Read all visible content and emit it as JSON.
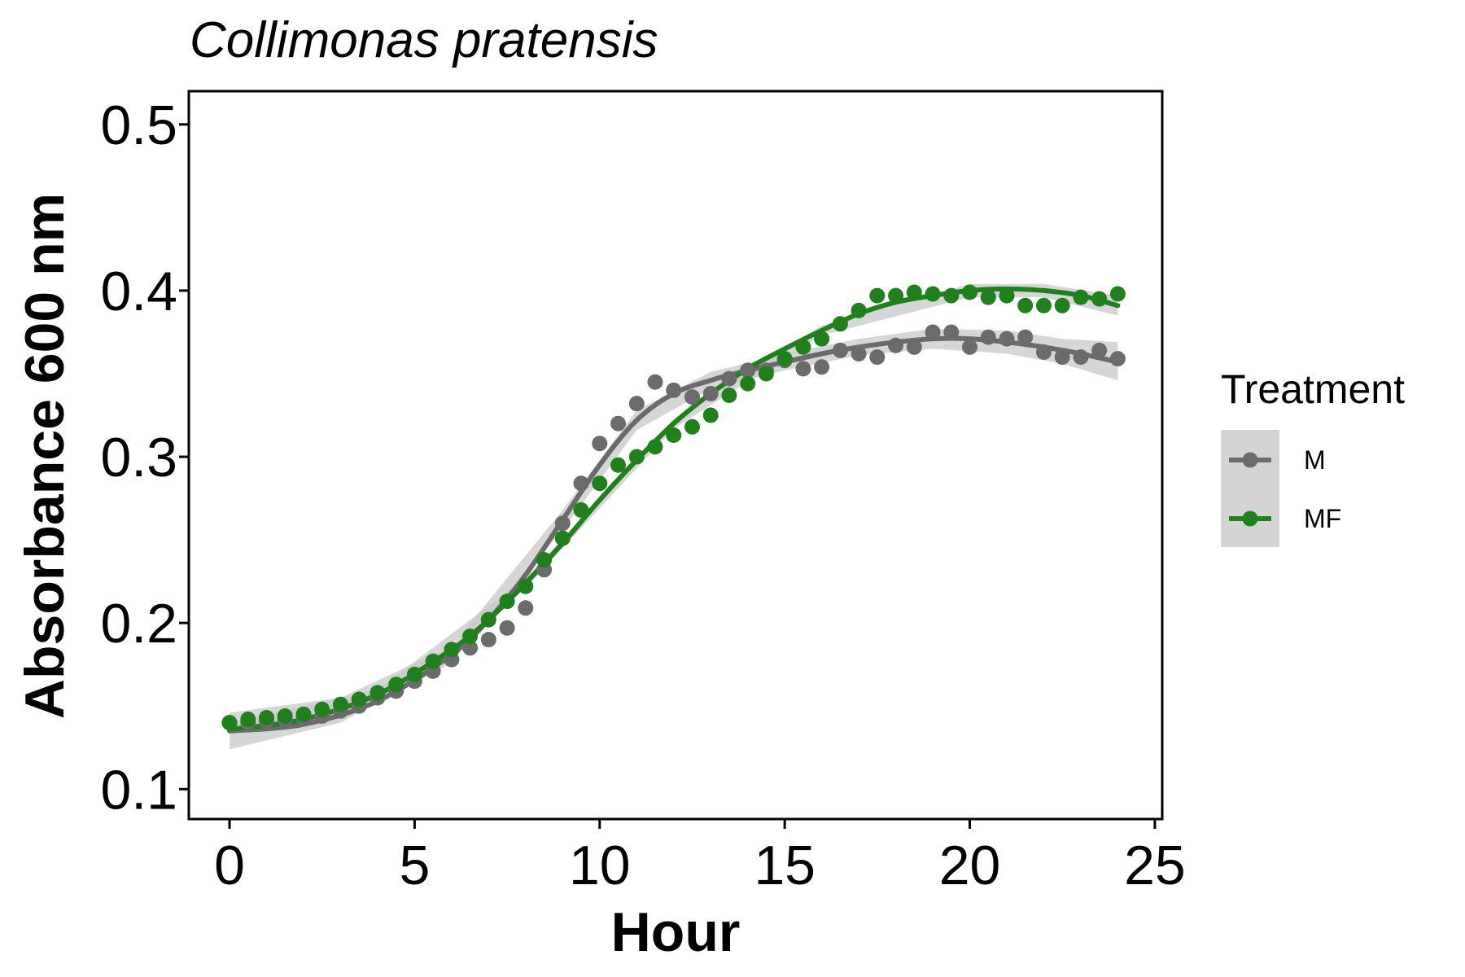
{
  "chart_data": {
    "type": "scatter",
    "title": "Collimonas pratensis",
    "xlabel": "Hour",
    "ylabel": "Absorbance 600 nm",
    "xlim": [
      -1.1,
      25.2
    ],
    "ylim": [
      0.082,
      0.52
    ],
    "x_ticks": [
      0,
      5,
      10,
      15,
      20,
      25
    ],
    "y_ticks": [
      0.1,
      0.2,
      0.3,
      0.4,
      0.5
    ],
    "x_tick_labels": [
      "0",
      "5",
      "10",
      "15",
      "20",
      "25"
    ],
    "y_tick_labels": [
      "0.1",
      "0.2",
      "0.3",
      "0.4",
      "0.5"
    ],
    "grid": false,
    "legend": {
      "title": "Treatment",
      "placement": "right"
    },
    "series": [
      {
        "name": "M",
        "color": "#6b6b6b",
        "x": [
          0,
          0.5,
          1,
          1.5,
          2,
          2.5,
          3,
          3.5,
          4,
          4.5,
          5,
          5.5,
          6,
          6.5,
          7,
          7.5,
          8,
          8.5,
          9,
          9.5,
          10,
          10.5,
          11,
          11.5,
          12,
          12.5,
          13,
          13.5,
          14,
          14.5,
          15,
          15.5,
          16,
          16.5,
          17,
          17.5,
          18,
          18.5,
          19,
          19.5,
          20,
          20.5,
          21,
          21.5,
          22,
          22.5,
          23,
          23.5,
          24
        ],
        "y": [
          0.14,
          0.14,
          0.141,
          0.142,
          0.143,
          0.144,
          0.147,
          0.15,
          0.155,
          0.159,
          0.165,
          0.171,
          0.178,
          0.185,
          0.19,
          0.197,
          0.209,
          0.232,
          0.26,
          0.284,
          0.308,
          0.32,
          0.332,
          0.345,
          0.34,
          0.336,
          0.338,
          0.347,
          0.352,
          0.352,
          0.358,
          0.353,
          0.354,
          0.364,
          0.362,
          0.36,
          0.367,
          0.366,
          0.375,
          0.375,
          0.366,
          0.372,
          0.371,
          0.372,
          0.363,
          0.36,
          0.36,
          0.364,
          0.359
        ],
        "fit": [
          [
            0,
            0.135
          ],
          [
            2,
            0.139
          ],
          [
            4,
            0.153
          ],
          [
            6,
            0.181
          ],
          [
            7,
            0.202
          ],
          [
            8,
            0.229
          ],
          [
            9,
            0.262
          ],
          [
            10,
            0.295
          ],
          [
            11,
            0.322
          ],
          [
            12,
            0.338
          ],
          [
            13,
            0.346
          ],
          [
            14,
            0.352
          ],
          [
            15,
            0.357
          ],
          [
            16,
            0.362
          ],
          [
            17,
            0.366
          ],
          [
            18,
            0.369
          ],
          [
            19,
            0.371
          ],
          [
            20,
            0.371
          ],
          [
            21,
            0.369
          ],
          [
            22,
            0.366
          ],
          [
            23,
            0.362
          ],
          [
            24,
            0.357
          ]
        ],
        "band": [
          [
            0,
            0.124,
            0.146
          ],
          [
            3,
            0.14,
            0.155
          ],
          [
            6,
            0.176,
            0.186
          ],
          [
            9,
            0.256,
            0.268
          ],
          [
            11,
            0.316,
            0.328
          ],
          [
            13,
            0.341,
            0.351
          ],
          [
            15,
            0.352,
            0.362
          ],
          [
            17,
            0.361,
            0.371
          ],
          [
            19,
            0.365,
            0.377
          ],
          [
            21,
            0.362,
            0.376
          ],
          [
            22.5,
            0.356,
            0.371
          ],
          [
            24,
            0.346,
            0.369
          ]
        ]
      },
      {
        "name": "MF",
        "color": "#217f1e",
        "x": [
          0,
          0.5,
          1,
          1.5,
          2,
          2.5,
          3,
          3.5,
          4,
          4.5,
          5,
          5.5,
          6,
          6.5,
          7,
          7.5,
          8,
          8.5,
          9,
          9.5,
          10,
          10.5,
          11,
          11.5,
          12,
          12.5,
          13,
          13.5,
          14,
          14.5,
          15,
          15.5,
          16,
          16.5,
          17,
          17.5,
          18,
          18.5,
          19,
          19.5,
          20,
          20.5,
          21,
          21.5,
          22,
          22.5,
          23,
          23.5,
          24
        ],
        "y": [
          0.14,
          0.142,
          0.143,
          0.144,
          0.145,
          0.148,
          0.151,
          0.154,
          0.158,
          0.163,
          0.169,
          0.177,
          0.184,
          0.192,
          0.202,
          0.213,
          0.222,
          0.238,
          0.251,
          0.268,
          0.284,
          0.295,
          0.3,
          0.306,
          0.313,
          0.318,
          0.325,
          0.337,
          0.344,
          0.35,
          0.359,
          0.366,
          0.371,
          0.38,
          0.388,
          0.397,
          0.397,
          0.399,
          0.398,
          0.397,
          0.399,
          0.396,
          0.397,
          0.391,
          0.391,
          0.391,
          0.396,
          0.395,
          0.398
        ],
        "fit": [
          [
            0,
            0.136
          ],
          [
            2,
            0.142
          ],
          [
            4,
            0.157
          ],
          [
            6,
            0.184
          ],
          [
            7,
            0.202
          ],
          [
            8,
            0.224
          ],
          [
            9,
            0.248
          ],
          [
            10,
            0.274
          ],
          [
            11,
            0.298
          ],
          [
            12,
            0.32
          ],
          [
            13,
            0.338
          ],
          [
            14,
            0.353
          ],
          [
            15,
            0.365
          ],
          [
            16,
            0.376
          ],
          [
            17,
            0.386
          ],
          [
            18,
            0.393
          ],
          [
            19,
            0.397
          ],
          [
            20,
            0.4
          ],
          [
            21,
            0.401
          ],
          [
            22,
            0.4
          ],
          [
            23,
            0.397
          ],
          [
            24,
            0.391
          ]
        ],
        "band": [
          [
            0,
            0.133,
            0.14
          ],
          [
            4,
            0.154,
            0.16
          ],
          [
            8,
            0.221,
            0.227
          ],
          [
            12,
            0.317,
            0.323
          ],
          [
            16,
            0.373,
            0.379
          ],
          [
            20,
            0.396,
            0.404
          ],
          [
            22,
            0.396,
            0.404
          ],
          [
            24,
            0.385,
            0.397
          ]
        ]
      }
    ]
  },
  "colors": {
    "band": "#c8c8c8",
    "legend_key_bg": "#d4d4d4",
    "axis": "#000000"
  }
}
